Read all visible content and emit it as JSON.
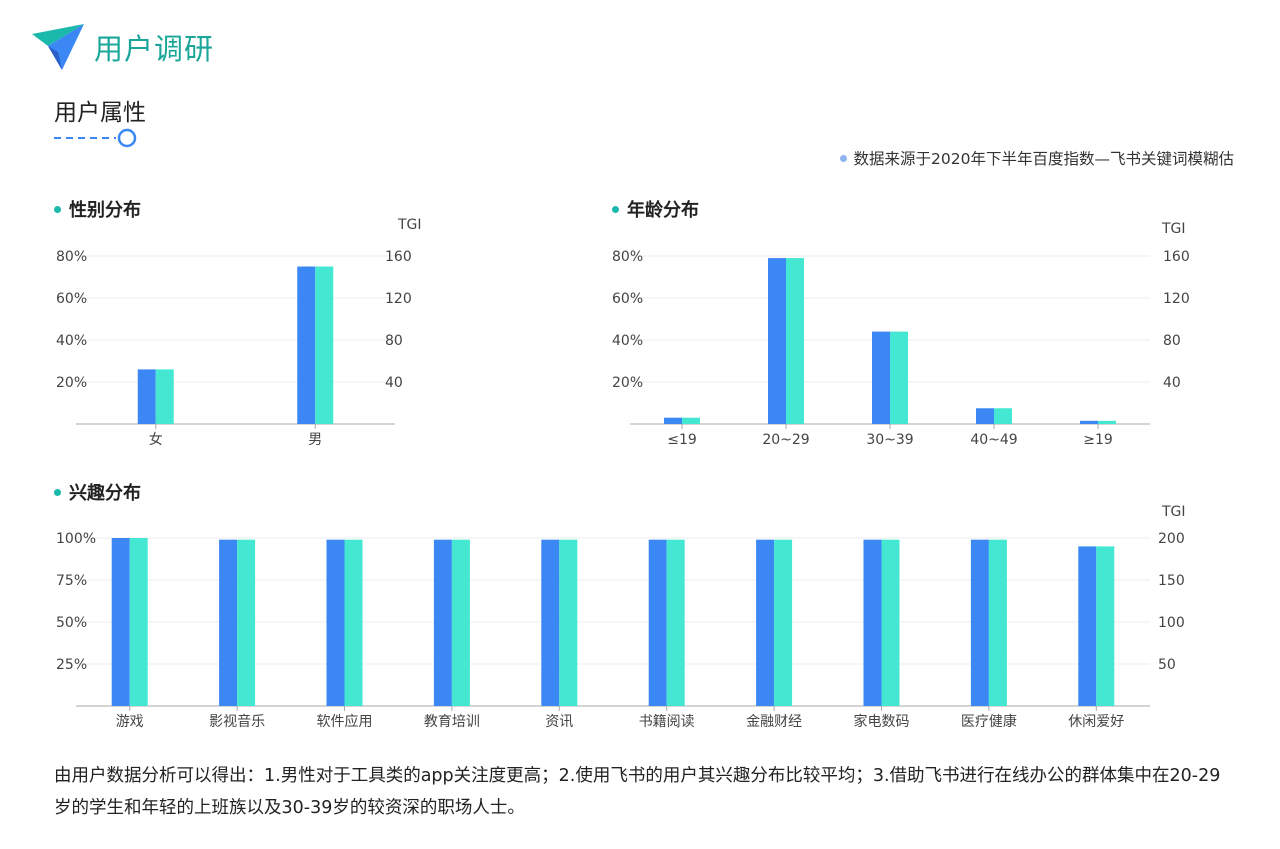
{
  "header": {
    "app_title": "用户调研",
    "logo_icon": "paper-plane-icon"
  },
  "section": {
    "title": "用户属性"
  },
  "source_note": "数据来源于2020年下半年百度指数—飞书关键词模糊估",
  "summary": "由用户数据分析可以得出：1.男性对于工具类的app关注度更高；2.使用飞书的用户其兴趣分布比较平均；3.借助飞书进行在线办公的群体集中在20-29岁的学生和年轻的上班族以及30-39岁的较资深的职场人士。",
  "colors": {
    "primary": "#3b88f5",
    "tgi": "#44e8d2",
    "accent": "#1bb8ac",
    "title": "#1aa79a"
  },
  "chart_data": [
    {
      "type": "bar",
      "title": "性别分布",
      "categories": [
        "女",
        "男"
      ],
      "series": [
        {
          "values": [
            26,
            75
          ]
        },
        {
          "values": [
            52,
            150
          ]
        }
      ],
      "left_ticks": [
        "20%",
        "40%",
        "60%",
        "80%"
      ],
      "right_ticks": [
        "40",
        "80",
        "120",
        "160"
      ],
      "right_axis_label": "TGI",
      "ylim": [
        0,
        80
      ],
      "ylim_right": [
        0,
        160
      ],
      "grid": true
    },
    {
      "type": "bar",
      "title": "年龄分布",
      "categories": [
        "≤19",
        "20~29",
        "30~39",
        "40~49",
        "≥19"
      ],
      "series": [
        {
          "values": [
            3,
            79,
            44,
            7.5,
            1.5
          ]
        },
        {
          "values": [
            6,
            158,
            88,
            15,
            3
          ]
        }
      ],
      "left_ticks": [
        "20%",
        "40%",
        "60%",
        "80%"
      ],
      "right_ticks": [
        "40",
        "80",
        "120",
        "160"
      ],
      "right_axis_label": "TGI",
      "ylim": [
        0,
        80
      ],
      "ylim_right": [
        0,
        160
      ],
      "grid": true
    },
    {
      "type": "bar",
      "title": "兴趣分布",
      "categories": [
        "游戏",
        "影视音乐",
        "软件应用",
        "教育培训",
        "资讯",
        "书籍阅读",
        "金融财经",
        "家电数码",
        "医疗健康",
        "休闲爱好"
      ],
      "series": [
        {
          "values": [
            100,
            99,
            99,
            99,
            99,
            99,
            99,
            99,
            99,
            95
          ]
        },
        {
          "values": [
            200,
            198,
            198,
            198,
            198,
            198,
            198,
            198,
            198,
            190
          ]
        }
      ],
      "left_ticks": [
        "25%",
        "50%",
        "75%",
        "100%"
      ],
      "right_ticks": [
        "50",
        "100",
        "150",
        "200"
      ],
      "right_axis_label": "TGI",
      "ylim": [
        0,
        100
      ],
      "ylim_right": [
        0,
        200
      ],
      "grid": true
    }
  ]
}
